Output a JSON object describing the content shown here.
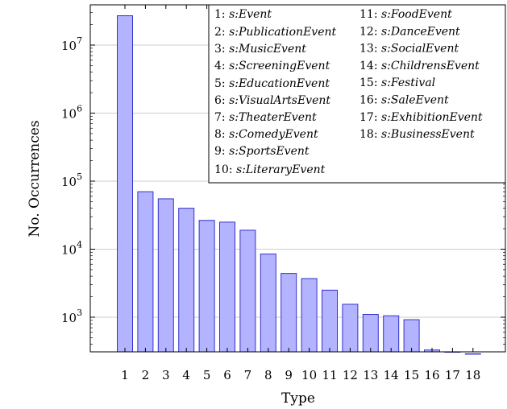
{
  "chart_data": {
    "type": "bar",
    "categories": [
      "1",
      "2",
      "3",
      "4",
      "5",
      "6",
      "7",
      "8",
      "9",
      "10",
      "11",
      "12",
      "13",
      "14",
      "15",
      "16",
      "17",
      "18"
    ],
    "values": [
      27000000,
      70000,
      55000,
      40000,
      26500,
      25000,
      19000,
      8500,
      4400,
      3700,
      2500,
      1550,
      1100,
      1050,
      920,
      330,
      310,
      290
    ],
    "xlabel": "Type",
    "ylabel": "No. Occurrences",
    "yscale": "log",
    "ylim": [
      290,
      50000000
    ],
    "yticks": [
      {
        "value": 1000,
        "base": "10",
        "exp": "3"
      },
      {
        "value": 10000,
        "base": "10",
        "exp": "4"
      },
      {
        "value": 100000,
        "base": "10",
        "exp": "5"
      },
      {
        "value": 1000000,
        "base": "10",
        "exp": "6"
      },
      {
        "value": 10000000,
        "base": "10",
        "exp": "7"
      }
    ],
    "bar_fill": "#b3b3ff",
    "bar_stroke": "#3333cc",
    "legend_placement": "top-right",
    "legend": [
      {
        "num": "1:",
        "name": "s:Event"
      },
      {
        "num": "2:",
        "name": "s:PublicationEvent"
      },
      {
        "num": "3:",
        "name": "s:MusicEvent"
      },
      {
        "num": "4:",
        "name": "s:ScreeningEvent"
      },
      {
        "num": "5:",
        "name": "s:EducationEvent"
      },
      {
        "num": "6:",
        "name": "s:VisualArtsEvent"
      },
      {
        "num": "7:",
        "name": "s:TheaterEvent"
      },
      {
        "num": "8:",
        "name": "s:ComedyEvent"
      },
      {
        "num": "9:",
        "name": "s:SportsEvent"
      },
      {
        "num": "10:",
        "name": "s:LiteraryEvent"
      },
      {
        "num": "11:",
        "name": "s:FoodEvent"
      },
      {
        "num": "12:",
        "name": "s:DanceEvent"
      },
      {
        "num": "13:",
        "name": "s:SocialEvent"
      },
      {
        "num": "14:",
        "name": "s:ChildrensEvent"
      },
      {
        "num": "15:",
        "name": "s:Festival"
      },
      {
        "num": "16:",
        "name": "s:SaleEvent"
      },
      {
        "num": "17:",
        "name": "s:ExhibitionEvent"
      },
      {
        "num": "18:",
        "name": "s:BusinessEvent"
      }
    ]
  }
}
